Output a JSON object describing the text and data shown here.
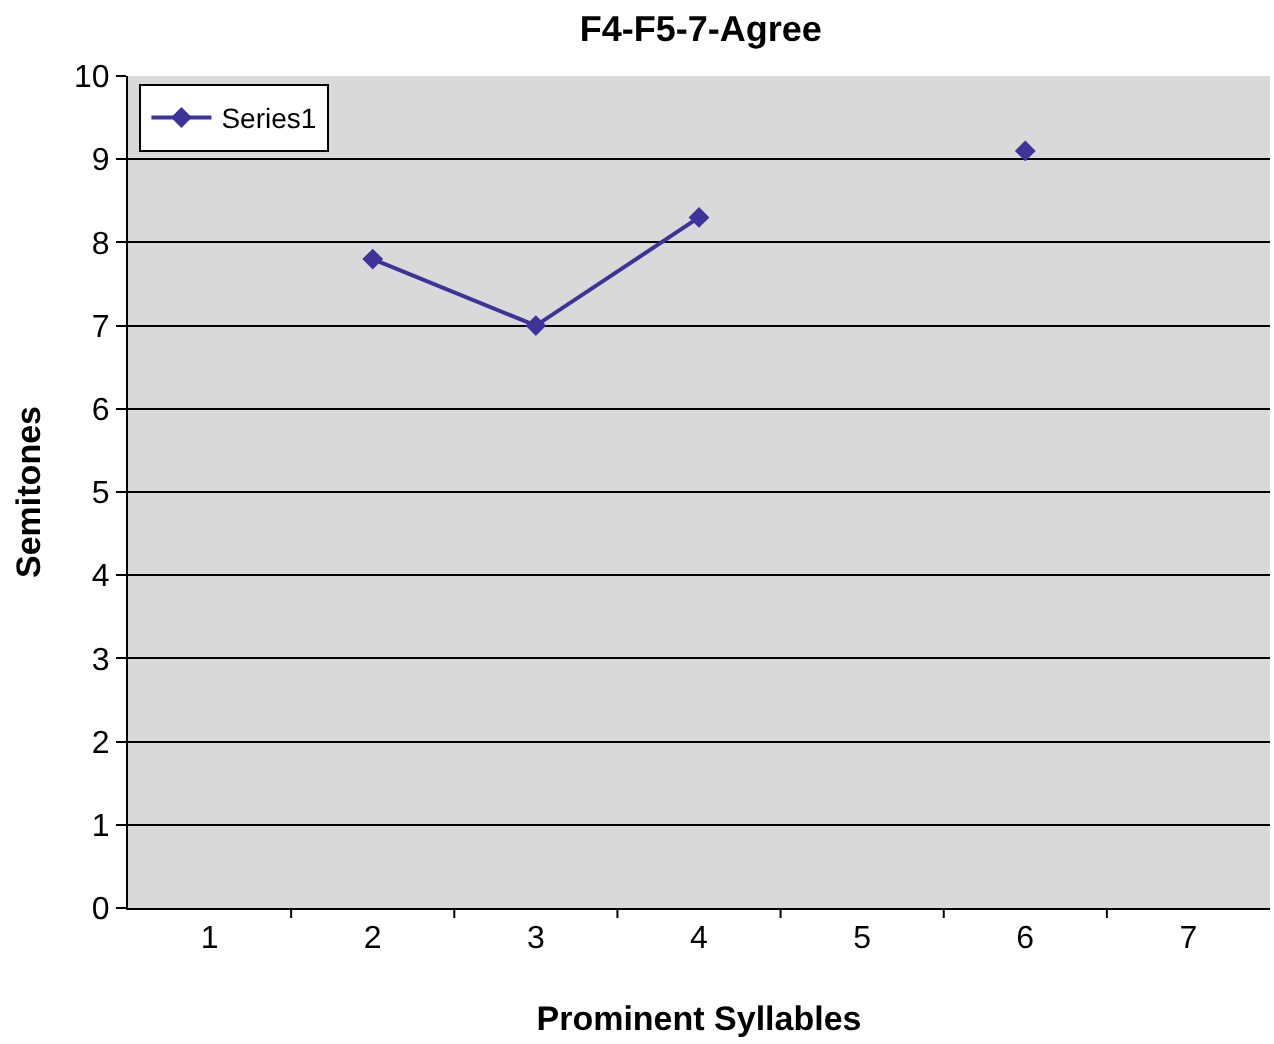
{
  "chart_data": {
    "type": "line",
    "title": "F4-F5-7-Agree",
    "xlabel": "Prominent Syllables",
    "ylabel": "Semitones",
    "categories": [
      "1",
      "2",
      "3",
      "4",
      "5",
      "6",
      "7"
    ],
    "series": [
      {
        "name": "Series1",
        "color": "#3d3399",
        "values": [
          null,
          7.8,
          7.0,
          8.3,
          null,
          9.1,
          null
        ]
      }
    ],
    "ylim": [
      0,
      10
    ],
    "yticks": [
      0,
      1,
      2,
      3,
      4,
      5,
      6,
      7,
      8,
      9,
      10
    ],
    "grid": "y",
    "legend": "top left",
    "marker": "diamond",
    "line_style": "solid"
  }
}
